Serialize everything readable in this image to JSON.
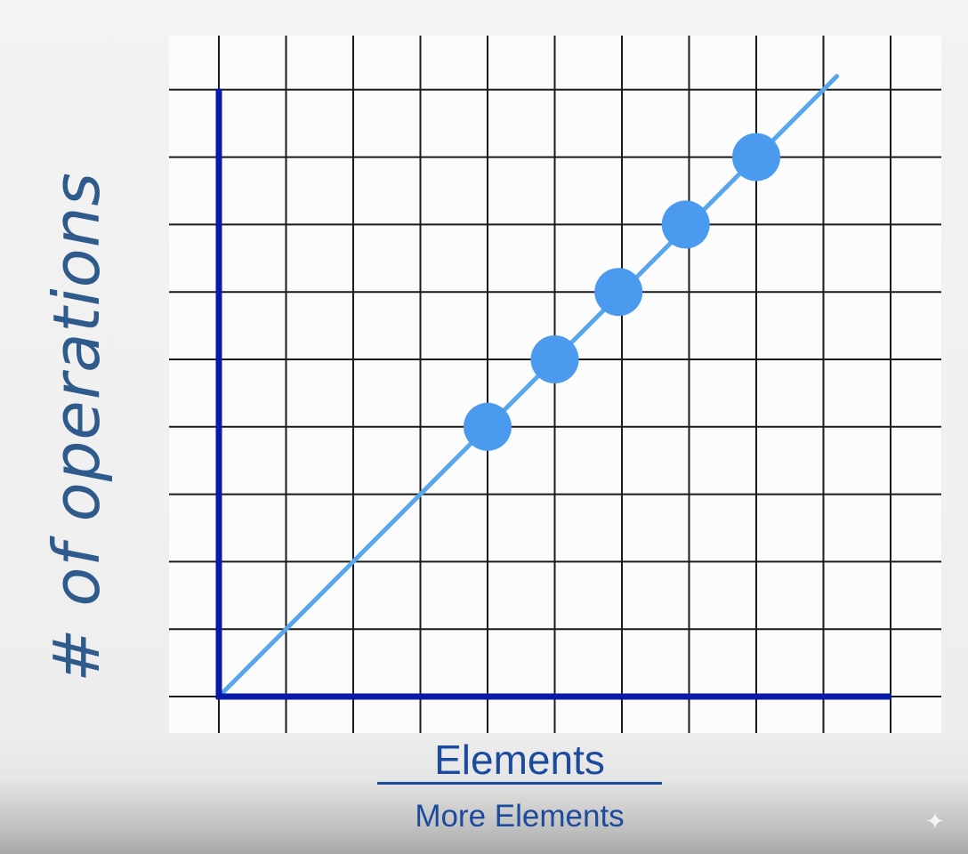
{
  "chart_data": {
    "type": "scatter",
    "ylabel": "# of operations",
    "xlabel": "Elements",
    "x_sublabel": "More Elements",
    "xlim": [
      0,
      10
    ],
    "ylim": [
      0,
      9
    ],
    "grid": true,
    "trend_line": {
      "from": [
        0,
        0
      ],
      "to": [
        9.2,
        9.2
      ]
    },
    "points": [
      {
        "x": 4,
        "y": 4
      },
      {
        "x": 5,
        "y": 5
      },
      {
        "x": 5.95,
        "y": 6
      },
      {
        "x": 6.95,
        "y": 7
      },
      {
        "x": 8,
        "y": 8
      }
    ]
  },
  "colors": {
    "axis": "#0a1aa8",
    "grid": "#1a1a1a",
    "points": "#4a9af0",
    "trend_line": "#5aa6ec",
    "ylabel": "#2f5a8c",
    "xlabel": "#1c4a9c"
  },
  "watermark_icon": "sparkle-icon"
}
